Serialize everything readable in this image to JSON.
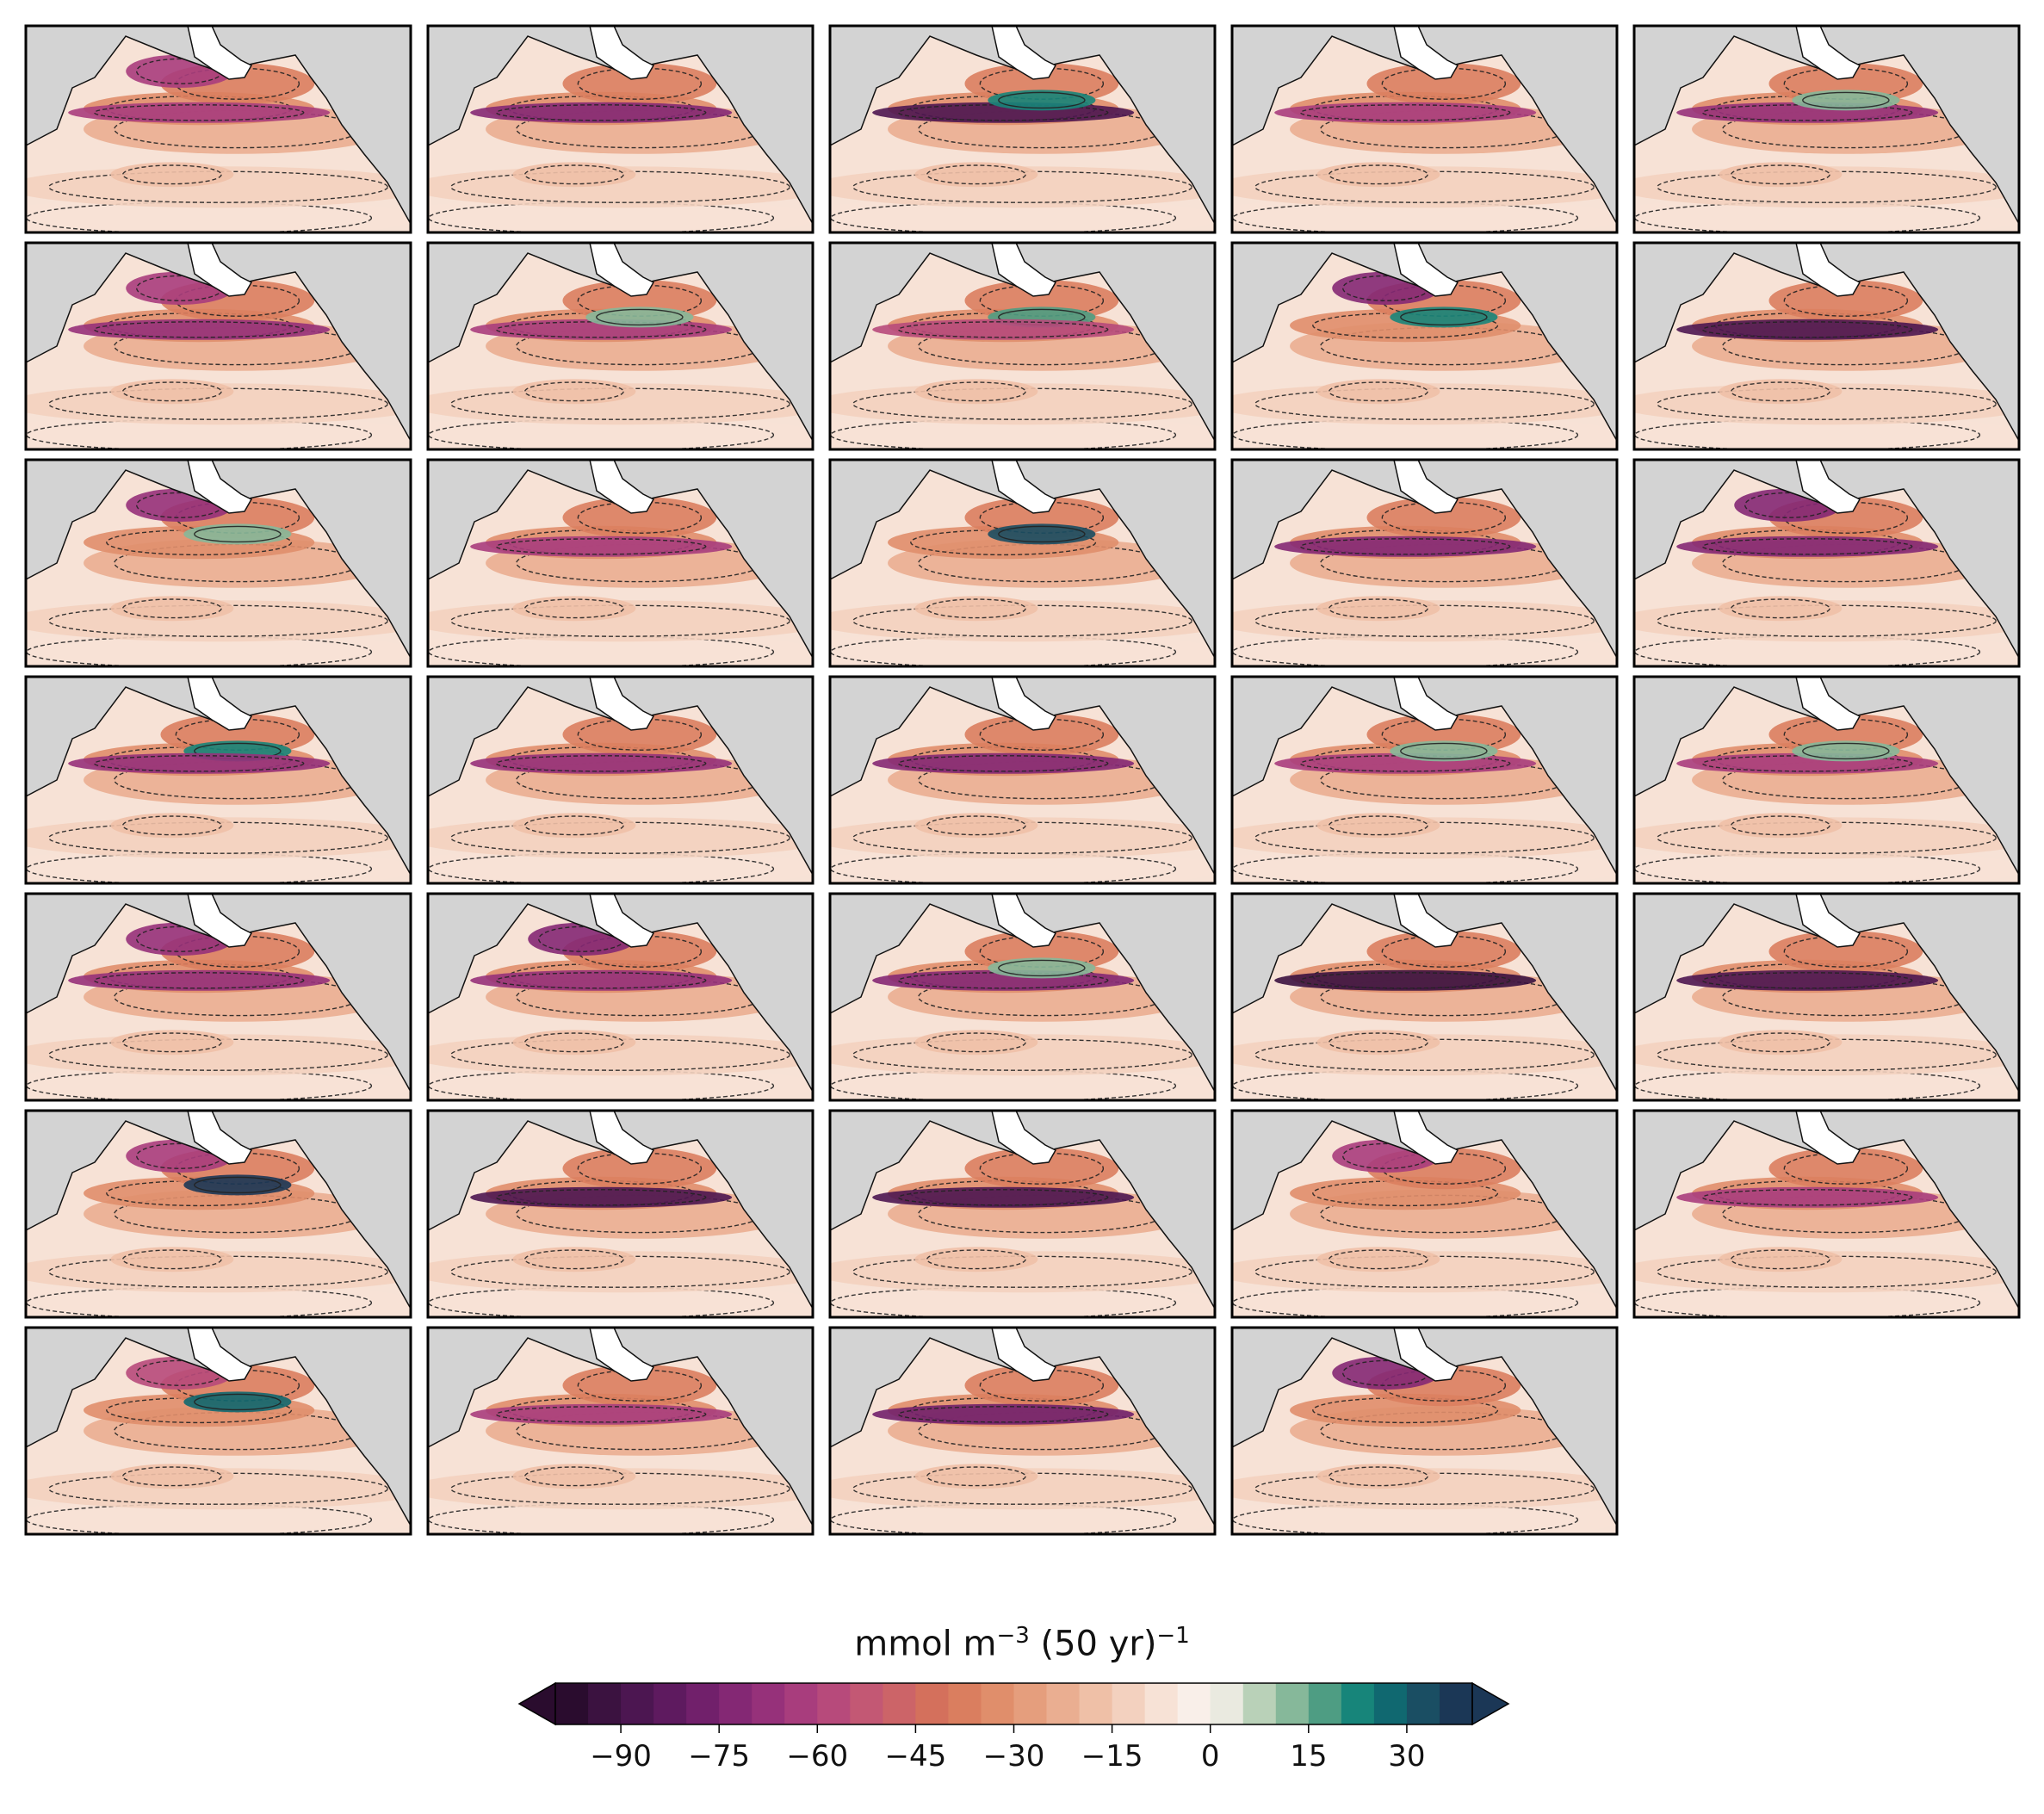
{
  "figure": {
    "layout": {
      "rows": 7,
      "cols": 5,
      "panel_count": 34
    },
    "panels": [
      {
        "id": 1,
        "features": [
          {
            "kind": "band",
            "strength": 0.45
          },
          {
            "kind": "neg",
            "strength": 0.55
          }
        ]
      },
      {
        "id": 2,
        "features": [
          {
            "kind": "band",
            "strength": 0.55
          }
        ]
      },
      {
        "id": 3,
        "features": [
          {
            "kind": "band",
            "strength": 0.9
          },
          {
            "kind": "pos",
            "strength": 0.5
          }
        ]
      },
      {
        "id": 4,
        "features": [
          {
            "kind": "band",
            "strength": 0.45
          }
        ]
      },
      {
        "id": 5,
        "features": [
          {
            "kind": "band",
            "strength": 0.5
          },
          {
            "kind": "pos",
            "strength": 0.3
          }
        ]
      },
      {
        "id": 6,
        "features": [
          {
            "kind": "band",
            "strength": 0.5
          },
          {
            "kind": "neg",
            "strength": 0.5
          }
        ]
      },
      {
        "id": 7,
        "features": [
          {
            "kind": "band",
            "strength": 0.4
          },
          {
            "kind": "pos",
            "strength": 0.3
          }
        ]
      },
      {
        "id": 8,
        "features": [
          {
            "kind": "pos",
            "strength": 0.4
          },
          {
            "kind": "band",
            "strength": 0.35
          }
        ]
      },
      {
        "id": 9,
        "features": [
          {
            "kind": "neg",
            "strength": 0.7
          },
          {
            "kind": "pos",
            "strength": 0.5
          }
        ]
      },
      {
        "id": 10,
        "features": [
          {
            "kind": "band",
            "strength": 0.85
          }
        ]
      },
      {
        "id": 11,
        "features": [
          {
            "kind": "neg",
            "strength": 0.65
          },
          {
            "kind": "pos",
            "strength": 0.2
          }
        ]
      },
      {
        "id": 12,
        "features": [
          {
            "kind": "band",
            "strength": 0.45
          }
        ]
      },
      {
        "id": 13,
        "features": [
          {
            "kind": "pos",
            "strength": 0.9
          }
        ]
      },
      {
        "id": 14,
        "features": [
          {
            "kind": "band",
            "strength": 0.55
          }
        ]
      },
      {
        "id": 15,
        "features": [
          {
            "kind": "neg",
            "strength": 0.75
          },
          {
            "kind": "band",
            "strength": 0.55
          }
        ]
      },
      {
        "id": 16,
        "features": [
          {
            "kind": "pos",
            "strength": 0.5
          },
          {
            "kind": "band",
            "strength": 0.5
          }
        ]
      },
      {
        "id": 17,
        "features": [
          {
            "kind": "band",
            "strength": 0.5
          }
        ]
      },
      {
        "id": 18,
        "features": [
          {
            "kind": "band",
            "strength": 0.6
          }
        ]
      },
      {
        "id": 19,
        "features": [
          {
            "kind": "band",
            "strength": 0.45
          },
          {
            "kind": "pos",
            "strength": 0.3
          }
        ]
      },
      {
        "id": 20,
        "features": [
          {
            "kind": "band",
            "strength": 0.45
          },
          {
            "kind": "pos",
            "strength": 0.3
          }
        ]
      },
      {
        "id": 21,
        "features": [
          {
            "kind": "neg",
            "strength": 0.6
          },
          {
            "kind": "band",
            "strength": 0.5
          }
        ]
      },
      {
        "id": 22,
        "features": [
          {
            "kind": "neg",
            "strength": 0.7
          },
          {
            "kind": "band",
            "strength": 0.5
          }
        ]
      },
      {
        "id": 23,
        "features": [
          {
            "kind": "band",
            "strength": 0.6
          },
          {
            "kind": "pos",
            "strength": 0.3
          }
        ]
      },
      {
        "id": 24,
        "features": [
          {
            "kind": "band",
            "strength": 0.95
          }
        ]
      },
      {
        "id": 25,
        "features": [
          {
            "kind": "band",
            "strength": 0.9
          }
        ]
      },
      {
        "id": 26,
        "features": [
          {
            "kind": "pos",
            "strength": 1.0
          },
          {
            "kind": "neg",
            "strength": 0.5
          }
        ]
      },
      {
        "id": 27,
        "features": [
          {
            "kind": "band",
            "strength": 0.85
          }
        ]
      },
      {
        "id": 28,
        "features": [
          {
            "kind": "band",
            "strength": 0.9
          }
        ]
      },
      {
        "id": 29,
        "features": [
          {
            "kind": "neg",
            "strength": 0.5
          }
        ]
      },
      {
        "id": 30,
        "features": [
          {
            "kind": "band",
            "strength": 0.4
          }
        ]
      },
      {
        "id": 31,
        "features": [
          {
            "kind": "pos",
            "strength": 0.8
          },
          {
            "kind": "neg",
            "strength": 0.35
          }
        ]
      },
      {
        "id": 32,
        "features": [
          {
            "kind": "band",
            "strength": 0.45
          }
        ]
      },
      {
        "id": 33,
        "features": [
          {
            "kind": "band",
            "strength": 0.7
          }
        ]
      },
      {
        "id": 34,
        "features": [
          {
            "kind": "neg",
            "strength": 0.7
          }
        ]
      }
    ],
    "land_color": "#d3d3d3",
    "ice_color": "#ffffff"
  },
  "colorbar": {
    "label_base": "mmol m",
    "label_exp1": "−3",
    "label_mid": " (50 yr)",
    "label_exp2": "−1",
    "min": -100,
    "max": 40,
    "step": 5,
    "extend": "both",
    "ticks": [
      -90,
      -75,
      -60,
      -45,
      -30,
      -15,
      0,
      15,
      30
    ],
    "tick_labels": [
      "−90",
      "−75",
      "−60",
      "−45",
      "−30",
      "−15",
      "0",
      "15",
      "30"
    ],
    "colors": [
      "#2a0c2e",
      "#3b1240",
      "#4c1651",
      "#5e1a5f",
      "#71206b",
      "#842874",
      "#96317a",
      "#a83d7d",
      "#b74a7b",
      "#c35874",
      "#cc6468",
      "#d4705c",
      "#da7e5f",
      "#e08e6b",
      "#e59e7d",
      "#eaae91",
      "#efc0a7",
      "#f3d1bf",
      "#f7e2d6",
      "#f9efe9",
      "#eaeae0",
      "#b9d1b8",
      "#86b89a",
      "#4e9d83",
      "#17857a",
      "#106870",
      "#1a4e63",
      "#1b3756"
    ]
  }
}
